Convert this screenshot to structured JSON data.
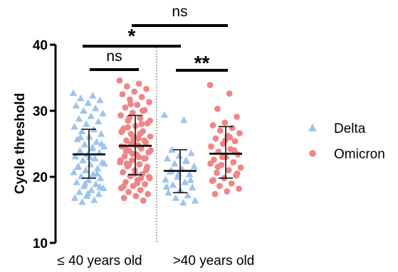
{
  "chart_data": {
    "type": "scatter",
    "ylabel": "Cycle threshold",
    "ylim": [
      10,
      40
    ],
    "yticks": [
      "10",
      "20",
      "30",
      "40"
    ],
    "groups": [
      "≤ 40 years old",
      ">40 years old"
    ],
    "legend": {
      "position": "right"
    },
    "colors": {
      "Delta": "#9ec3ee",
      "Omicron": "#f08585"
    },
    "series": [
      {
        "name": "Delta",
        "marker": "triangle",
        "group": "≤ 40 years old",
        "mean": 23.4,
        "sd_low": 19.8,
        "sd_high": 27.2,
        "values": [
          32.7,
          32.3,
          31.9,
          31.6,
          31.2,
          30.8,
          30.4,
          30.0,
          29.6,
          29.2,
          28.8,
          28.4,
          28.0,
          27.6,
          27.2,
          26.9,
          26.5,
          26.1,
          25.7,
          25.3,
          24.9,
          24.6,
          24.3,
          24.0,
          23.7,
          23.4,
          23.1,
          22.8,
          22.5,
          22.2,
          21.9,
          21.6,
          21.3,
          21.0,
          20.7,
          20.4,
          20.1,
          19.8,
          19.5,
          19.2,
          18.9,
          18.6,
          18.3,
          18.0,
          17.7,
          17.4,
          17.1,
          16.8,
          16.5,
          16.2,
          25.0,
          23.0,
          21.5,
          20.5,
          19.0,
          22.0,
          24.5,
          26.0,
          18.5,
          17.5
        ]
      },
      {
        "name": "Omicron",
        "marker": "circle",
        "group": "≤ 40 years old",
        "mean": 24.7,
        "sd_low": 20.3,
        "sd_high": 29.3,
        "values": [
          34.6,
          34.1,
          33.7,
          33.3,
          32.9,
          32.5,
          32.1,
          31.7,
          31.3,
          30.9,
          30.5,
          30.1,
          29.7,
          29.3,
          28.9,
          28.5,
          28.1,
          27.7,
          27.3,
          26.9,
          26.5,
          26.1,
          25.8,
          25.5,
          25.2,
          24.9,
          24.6,
          24.3,
          24.0,
          23.7,
          23.4,
          23.1,
          22.8,
          22.5,
          22.2,
          21.9,
          21.6,
          21.3,
          21.0,
          20.7,
          20.4,
          20.1,
          19.8,
          19.5,
          19.2,
          18.9,
          18.6,
          18.3,
          18.0,
          17.7,
          17.4,
          17.1,
          16.8,
          16.4,
          25.0,
          24.0,
          23.0,
          22.0,
          21.0,
          26.0,
          27.0,
          28.0,
          29.0,
          20.0,
          19.0,
          24.5,
          25.5,
          23.5,
          22.5,
          26.5,
          27.5,
          21.5,
          20.5,
          18.5,
          30.0,
          31.0,
          28.5,
          24.8,
          23.8,
          22.8,
          25.8,
          26.8,
          19.8,
          21.8
        ]
      },
      {
        "name": "Delta",
        "marker": "triangle",
        "group": ">40 years old",
        "mean": 20.9,
        "sd_low": 17.6,
        "sd_high": 24.1,
        "values": [
          29.4,
          28.6,
          24.1,
          23.6,
          23.2,
          22.8,
          22.4,
          22.0,
          21.6,
          21.2,
          20.8,
          20.4,
          20.0,
          19.6,
          19.2,
          18.8,
          18.4,
          18.0,
          17.6,
          17.2,
          16.8,
          16.4,
          16.1,
          21.0,
          19.5,
          20.5,
          18.5,
          22.5
        ]
      },
      {
        "name": "Omicron",
        "marker": "circle",
        "group": ">40 years old",
        "mean": 23.5,
        "sd_low": 19.8,
        "sd_high": 27.6,
        "values": [
          33.9,
          32.6,
          30.3,
          29.1,
          28.2,
          27.8,
          27.4,
          27.0,
          26.6,
          26.2,
          25.8,
          25.4,
          25.0,
          24.6,
          24.2,
          23.8,
          23.4,
          23.0,
          22.6,
          22.2,
          21.8,
          21.4,
          21.0,
          20.6,
          20.2,
          19.8,
          19.4,
          19.0,
          18.6,
          18.2,
          17.8,
          17.4,
          24.0,
          23.0,
          22.0,
          26.0,
          21.5,
          20.5,
          25.5,
          19.5
        ]
      }
    ],
    "comparisons": [
      {
        "label": "ns",
        "from": "Delta ≤ 40 years old",
        "to": "Omicron ≤ 40 years old"
      },
      {
        "label": "**",
        "from": "Delta >40 years old",
        "to": "Omicron >40 years old"
      },
      {
        "label": "*",
        "from": "Delta ≤ 40 years old",
        "to": "Delta >40 years old"
      },
      {
        "label": "ns",
        "from": "Omicron ≤ 40 years old",
        "to": "Omicron >40 years old"
      }
    ]
  }
}
